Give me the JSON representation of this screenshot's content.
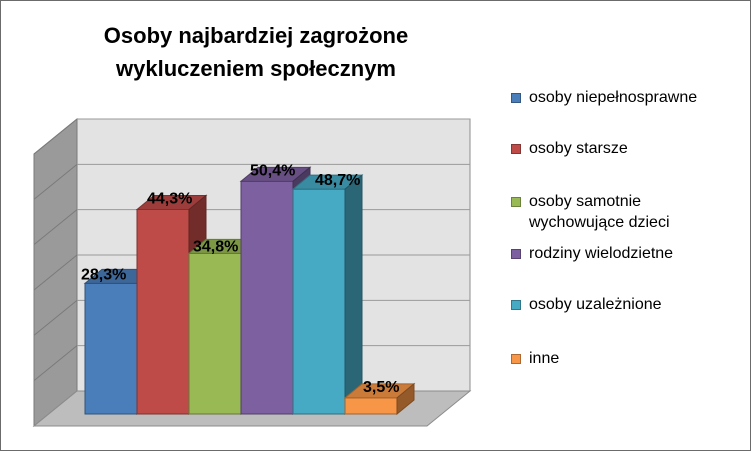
{
  "chart_data": {
    "type": "bar",
    "title": "Osoby najbardziej zagrożone wykluczeniem społecznym",
    "categories": [
      "osoby niepełnosprawne",
      "osoby starsze",
      "osoby samotnie wychowujące dzieci",
      "rodziny wielodzietne",
      "osoby uzależnione",
      "inne"
    ],
    "values": [
      28.3,
      44.3,
      34.8,
      50.4,
      48.7,
      3.5
    ],
    "value_labels": [
      "28,3%",
      "44,3%",
      "34,8%",
      "50,4%",
      "48,7%",
      "3,5%"
    ],
    "colors": [
      "#4a7ebb",
      "#be4b48",
      "#98b954",
      "#7d60a0",
      "#46aac5",
      "#f79646"
    ],
    "ylim": [
      0,
      60
    ],
    "grid": true,
    "legend_position": "right",
    "style": "3d-column"
  },
  "legend": {
    "items": [
      {
        "label": "osoby niepełnosprawne",
        "color": "#4a7ebb"
      },
      {
        "label": "osoby starsze",
        "color": "#be4b48"
      },
      {
        "label": "osoby samotnie\nwychowujące dzieci",
        "color": "#98b954"
      },
      {
        "label": "rodziny wielodzietne",
        "color": "#7d60a0"
      },
      {
        "label": "osoby uzależnione",
        "color": "#46aac5"
      },
      {
        "label": "inne",
        "color": "#f79646"
      }
    ]
  }
}
